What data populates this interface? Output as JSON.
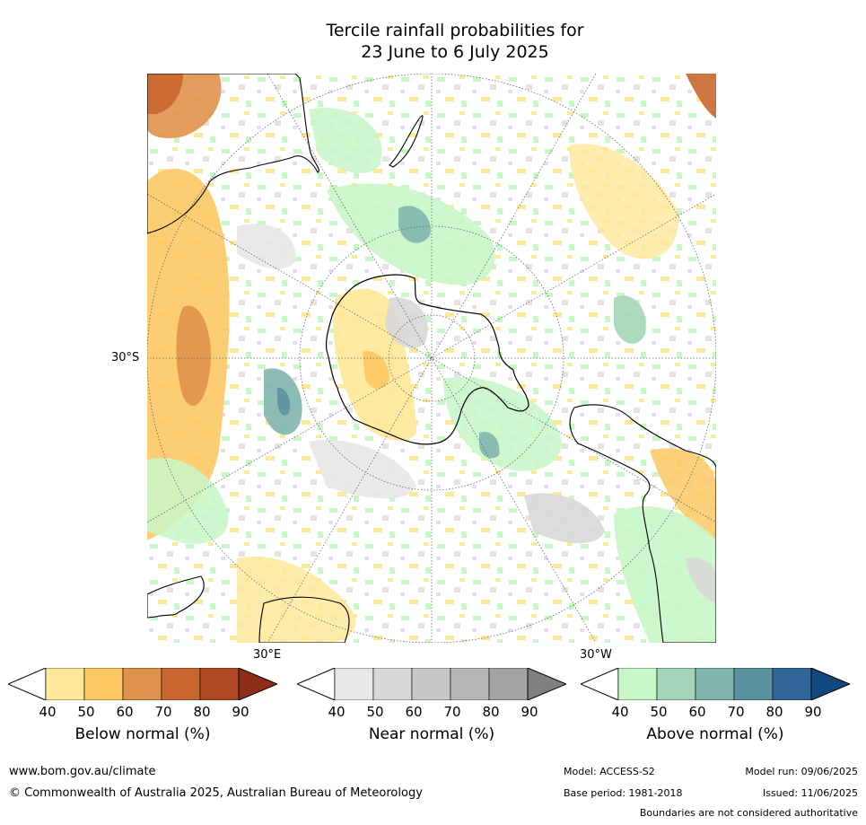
{
  "title_line1": "Tercile rainfall probabilities for",
  "title_line2": "23 June to 6 July 2025",
  "map": {
    "projection": "south polar stereographic",
    "labels": {
      "lat": "30°S",
      "lon_east": "30°E",
      "lon_west": "30°W"
    },
    "colors": {
      "ocean_bg": "#ffffff",
      "coast": "#000000",
      "grid": "#666666"
    }
  },
  "colorbars": [
    {
      "title": "Below normal (%)",
      "ticks": [
        "40",
        "50",
        "60",
        "70",
        "80",
        "90"
      ],
      "colors": [
        "#ffffff",
        "#fee99b",
        "#fdc864",
        "#e0924c",
        "#c9662f",
        "#b04a26",
        "#8f2e18"
      ]
    },
    {
      "title": "Near normal (%)",
      "ticks": [
        "40",
        "50",
        "60",
        "70",
        "80",
        "90"
      ],
      "colors": [
        "#ffffff",
        "#e8e8e8",
        "#d8d8d8",
        "#c8c8c8",
        "#b7b7b7",
        "#a3a3a3",
        "#7f7f7f"
      ]
    },
    {
      "title": "Above normal (%)",
      "ticks": [
        "40",
        "50",
        "60",
        "70",
        "80",
        "90"
      ],
      "colors": [
        "#ffffff",
        "#c8f7c8",
        "#a3d6b8",
        "#7fb5ac",
        "#5b92a0",
        "#336698",
        "#124880"
      ]
    }
  ],
  "footer": {
    "url": "www.bom.gov.au/climate",
    "copyright": "© Commonwealth of Australia 2025, Australian Bureau of Meteorology",
    "model": "Model: ACCESS-S2",
    "model_run": "Model run: 09/06/2025",
    "base_period": "Base period: 1981-2018",
    "issued": "Issued: 11/06/2025",
    "disclaimer": "Boundaries are not considered authoritative"
  }
}
